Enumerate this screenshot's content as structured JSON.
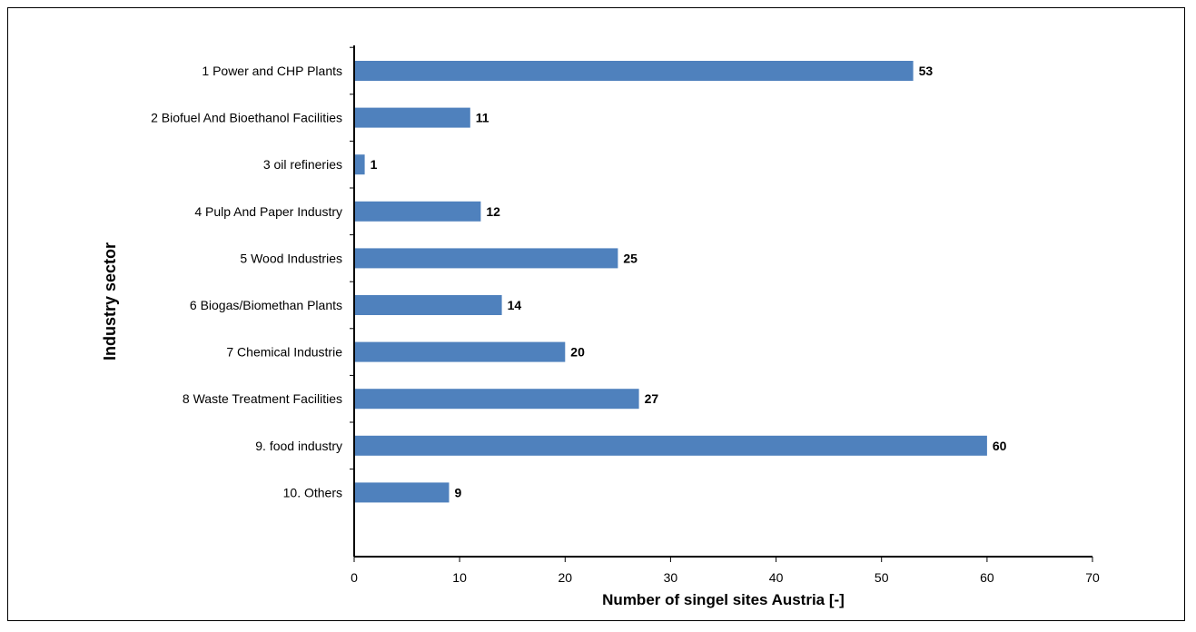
{
  "chart_data": {
    "type": "bar",
    "orientation": "horizontal",
    "categories": [
      "1 Power and CHP Plants",
      "2 Biofuel And Bioethanol Facilities",
      "3 oil refineries",
      "4 Pulp And Paper Industry",
      "5 Wood Industries",
      "6 Biogas/Biomethan Plants",
      "7 Chemical Industrie",
      "8 Waste Treatment Facilities",
      "9. food industry",
      "10. Others"
    ],
    "values": [
      53,
      11,
      1,
      12,
      25,
      14,
      20,
      27,
      60,
      9
    ],
    "xlabel": "Number of singel sites Austria [-]",
    "ylabel": "Industry sector",
    "xlim": [
      0,
      70
    ],
    "xticks": [
      0,
      10,
      20,
      30,
      40,
      50,
      60,
      70
    ],
    "grid": false,
    "bar_color": "#4F81BD",
    "data_labels": true
  }
}
